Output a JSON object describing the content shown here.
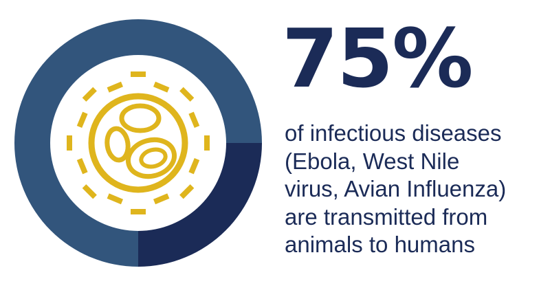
{
  "colors": {
    "primary": "#1b2b57",
    "secondary": "#32557c",
    "accent": "#dfb51d",
    "background": "#ffffff"
  },
  "icon": "virus-icon",
  "headline": "75%",
  "caption_lines": [
    "of infectious diseases",
    "(Ebola, West Nile",
    "virus, Avian Influenza)",
    "are transmitted from",
    "animals to humans"
  ],
  "chart_data": {
    "type": "pie",
    "style": "donut",
    "values": [
      75,
      25
    ],
    "unit": "%",
    "title": "",
    "labels": [
      "",
      ""
    ]
  }
}
